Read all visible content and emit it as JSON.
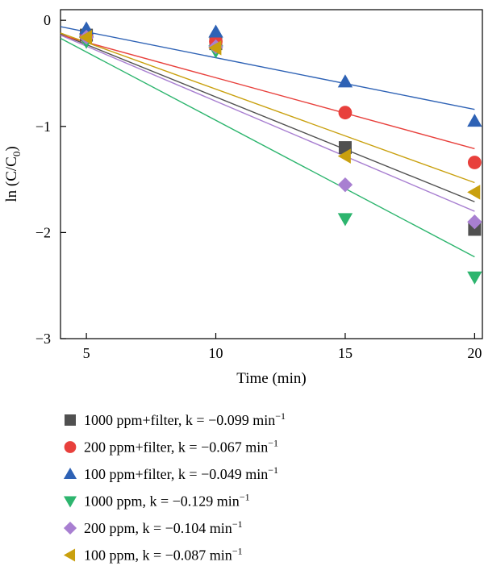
{
  "chart_data": {
    "type": "scatter",
    "xlabel": "Time (min)",
    "ylabel_main": "ln (C/C",
    "ylabel_sub": "0",
    "ylabel_end": ")",
    "xlim": [
      4,
      20.3
    ],
    "ylim": [
      -3,
      0.1
    ],
    "xticks": [
      5,
      10,
      15,
      20
    ],
    "xtick_labels": [
      "5",
      "10",
      "15",
      "20"
    ],
    "yticks": [
      0,
      -1,
      -2,
      -3
    ],
    "ytick_labels": [
      "0",
      "−1",
      "−2",
      "−3"
    ],
    "legend_position": "below",
    "series": [
      {
        "name": "1000 ppm+filter, k = −0.099 min",
        "unit_sup": "−1",
        "marker": "square",
        "color": "#505050",
        "x": [
          5,
          10,
          15,
          20
        ],
        "y": [
          -0.14,
          -0.22,
          -1.2,
          -1.97
        ],
        "fit": {
          "x": [
            4,
            20
          ],
          "y": [
            -0.13,
            -1.71
          ]
        }
      },
      {
        "name": "200 ppm+filter, k = −0.067 min",
        "unit_sup": "−1",
        "marker": "circle",
        "color": "#e8403c",
        "x": [
          5,
          10,
          15,
          20
        ],
        "y": [
          -0.15,
          -0.2,
          -0.87,
          -1.34
        ],
        "fit": {
          "x": [
            4,
            20
          ],
          "y": [
            -0.14,
            -1.21
          ]
        }
      },
      {
        "name": "100 ppm+filter, k = −0.049 min",
        "unit_sup": "−1",
        "marker": "triangle-up",
        "color": "#2e62b5",
        "x": [
          5,
          10,
          15,
          20
        ],
        "y": [
          -0.08,
          -0.11,
          -0.58,
          -0.95
        ],
        "fit": {
          "x": [
            4,
            20
          ],
          "y": [
            -0.06,
            -0.84
          ]
        }
      },
      {
        "name": "1000 ppm, k = −0.129 min",
        "unit_sup": "−1",
        "marker": "triangle-down",
        "color": "#2db56e",
        "x": [
          5,
          10,
          15,
          20
        ],
        "y": [
          -0.2,
          -0.29,
          -1.87,
          -2.42
        ],
        "fit": {
          "x": [
            4,
            20
          ],
          "y": [
            -0.17,
            -2.23
          ]
        }
      },
      {
        "name": "200 ppm, k = −0.104 min",
        "unit_sup": "−1",
        "marker": "diamond",
        "color": "#a87fd1",
        "x": [
          5,
          10,
          15,
          20
        ],
        "y": [
          -0.16,
          -0.25,
          -1.55,
          -1.9
        ],
        "fit": {
          "x": [
            4,
            20
          ],
          "y": [
            -0.14,
            -1.8
          ]
        }
      },
      {
        "name": "100 ppm, k = −0.087 min",
        "unit_sup": "−1",
        "marker": "triangle-left",
        "color": "#c9a00e",
        "x": [
          5,
          10,
          15,
          20
        ],
        "y": [
          -0.16,
          -0.26,
          -1.28,
          -1.62
        ],
        "fit": {
          "x": [
            4,
            20
          ],
          "y": [
            -0.12,
            -1.53
          ]
        }
      }
    ]
  }
}
